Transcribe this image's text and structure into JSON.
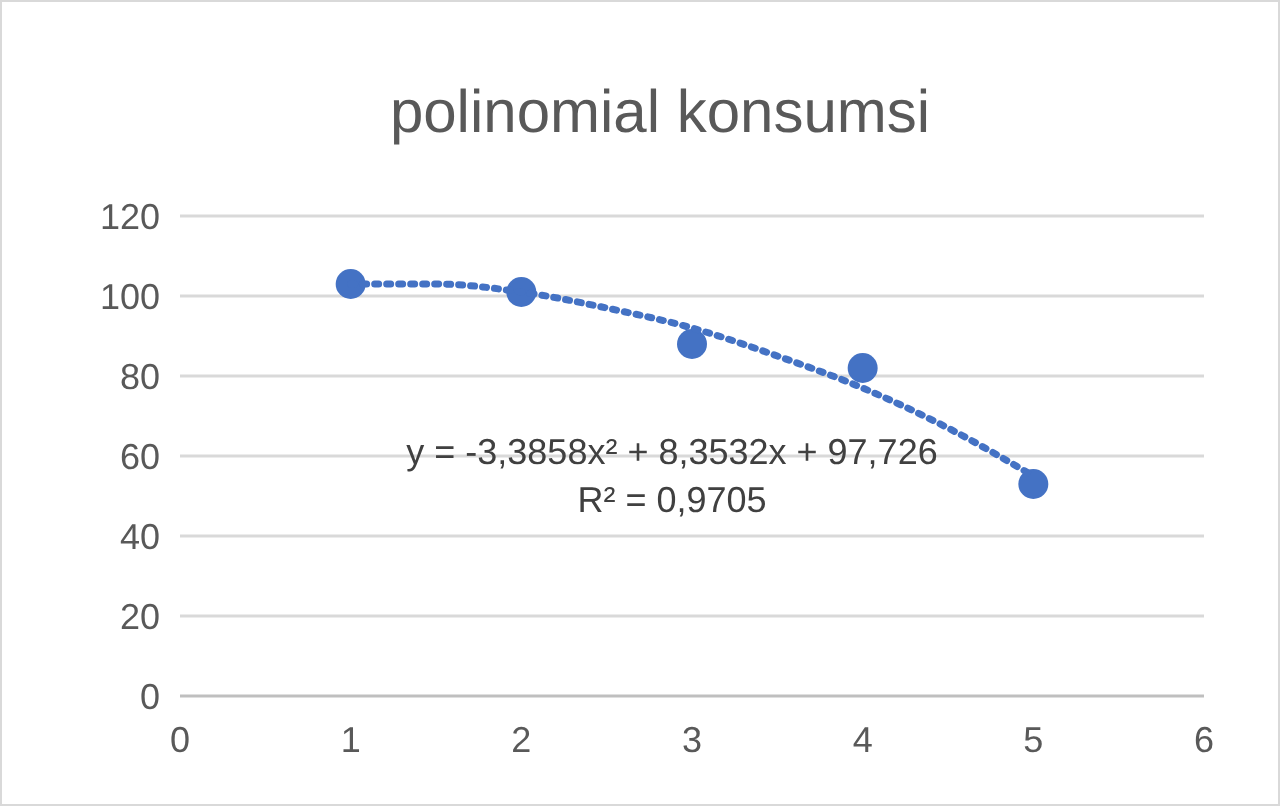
{
  "chart_data": {
    "type": "scatter",
    "title": "polinomial konsumsi",
    "x": [
      1,
      2,
      3,
      4,
      5
    ],
    "series": [
      {
        "color": "#4472c4",
        "values": [
          103,
          101,
          88,
          82,
          53
        ],
        "marker": "circle"
      },
      {
        "type": "line",
        "color": "#4472c4",
        "x": [
          1,
          1.5,
          2,
          2.5,
          3,
          3.5,
          4,
          4.5,
          5
        ],
        "values": [
          103,
          103,
          101,
          97,
          92,
          85,
          77,
          67,
          55
        ],
        "line_style": "dotted",
        "marker": "none"
      }
    ],
    "xlim": [
      0,
      6
    ],
    "xticks": [
      0,
      1,
      2,
      3,
      4,
      5,
      6
    ],
    "ylim": [
      0,
      120
    ],
    "yticks": [
      0,
      20,
      40,
      60,
      80,
      100,
      120
    ],
    "grid": "y",
    "annotations": [
      "y = -3,3858x² + 8,3532x + 97,726",
      "R² = 0,9705"
    ]
  }
}
